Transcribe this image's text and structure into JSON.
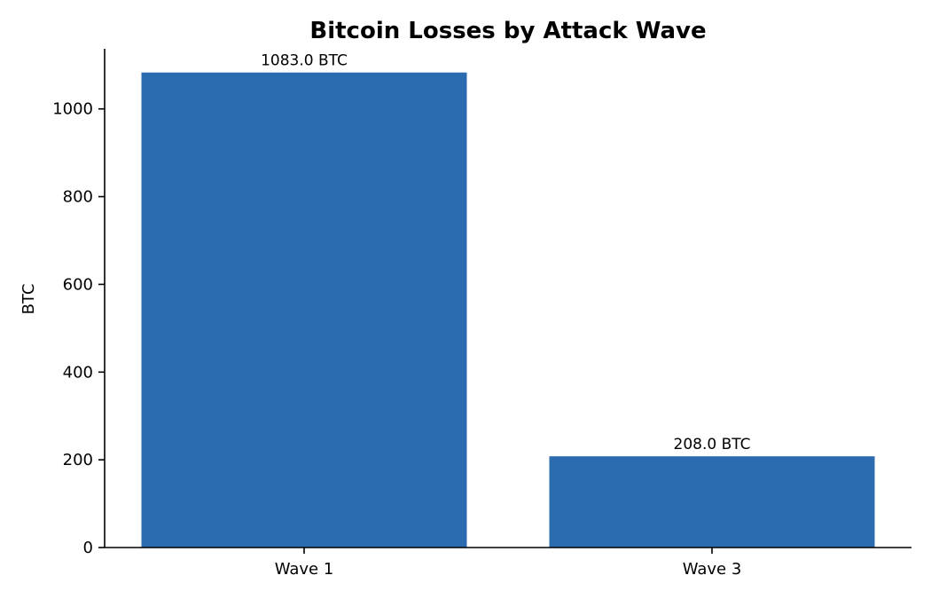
{
  "chart_data": {
    "type": "bar",
    "title": "Bitcoin Losses by Attack Wave",
    "xlabel": "",
    "ylabel": "BTC",
    "categories": [
      "Wave 1",
      "Wave 3"
    ],
    "values": [
      1083.0,
      208.0
    ],
    "data_labels": [
      "1083.0 BTC",
      "208.0 BTC"
    ],
    "ylim": [
      0,
      1137
    ],
    "yticks": [
      0,
      200,
      400,
      600,
      800,
      1000
    ],
    "grid": false,
    "bar_color": "#2b6cb0"
  }
}
